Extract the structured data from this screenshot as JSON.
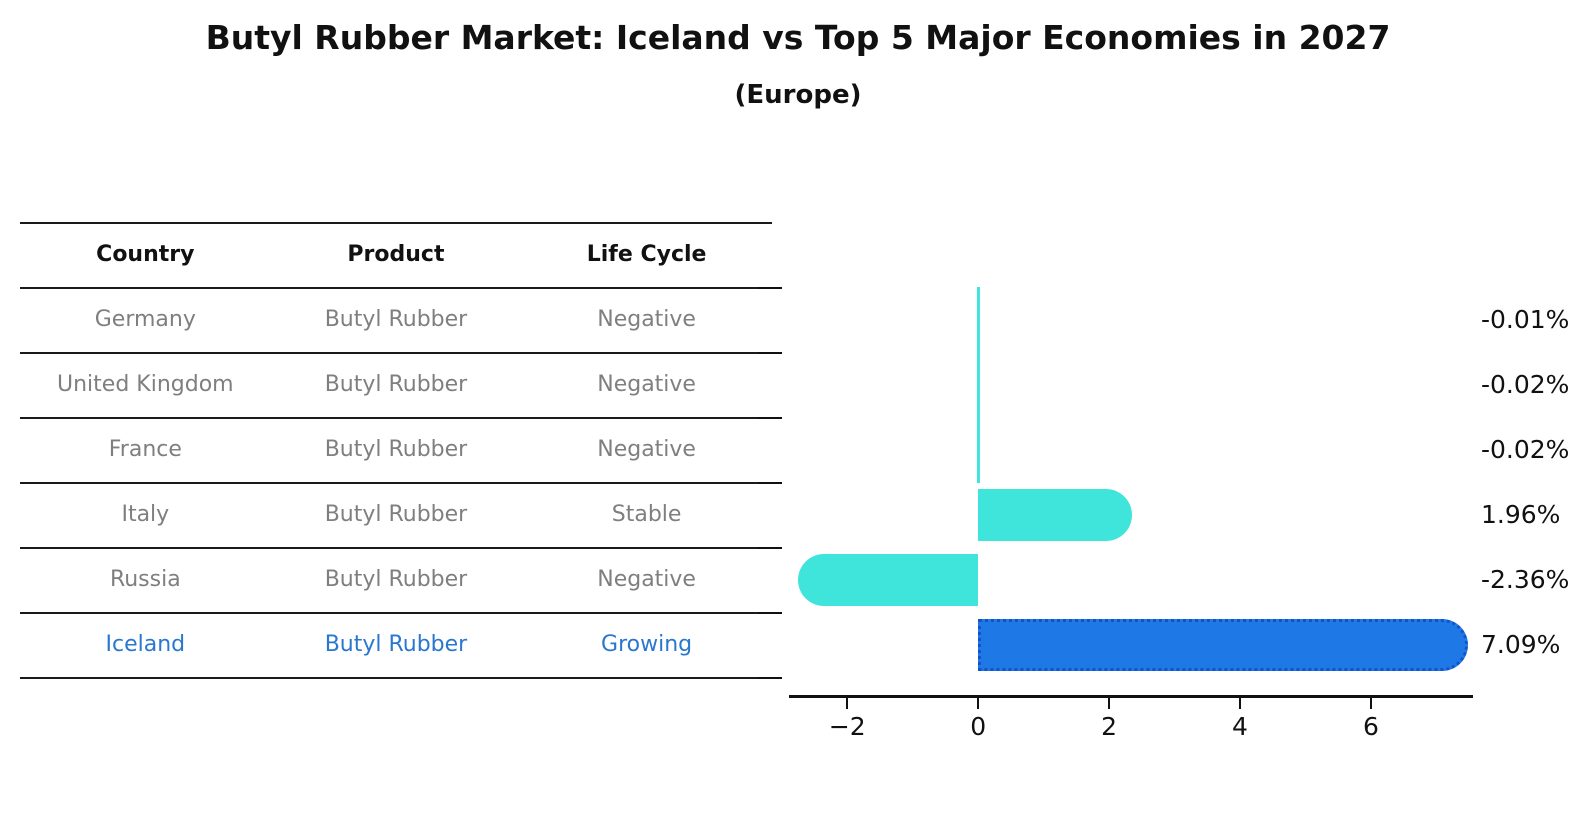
{
  "title": "Butyl Rubber Market: Iceland vs Top 5 Major Economies in 2027",
  "subtitle": "(Europe)",
  "table": {
    "headers": [
      "Country",
      "Product",
      "Life Cycle"
    ],
    "rows": [
      {
        "country": "Germany",
        "product": "Butyl Rubber",
        "life_cycle": "Negative",
        "highlight": false
      },
      {
        "country": "United Kingdom",
        "product": "Butyl Rubber",
        "life_cycle": "Negative",
        "highlight": false
      },
      {
        "country": "France",
        "product": "Butyl Rubber",
        "life_cycle": "Negative",
        "highlight": false
      },
      {
        "country": "Italy",
        "product": "Butyl Rubber",
        "life_cycle": "Stable",
        "highlight": false
      },
      {
        "country": "Russia",
        "product": "Butyl Rubber",
        "life_cycle": "Negative",
        "highlight": false
      },
      {
        "country": "Iceland",
        "product": "Butyl Rubber",
        "life_cycle": "Growing",
        "highlight": true
      }
    ]
  },
  "chart_data": {
    "type": "bar",
    "orientation": "horizontal",
    "title": "Butyl Rubber Market: Iceland vs Top 5 Major Economies in 2027",
    "subtitle": "(Europe)",
    "categories": [
      "Germany",
      "United Kingdom",
      "France",
      "Italy",
      "Russia",
      "Iceland"
    ],
    "values": [
      -0.01,
      -0.02,
      -0.02,
      1.96,
      -2.36,
      7.09
    ],
    "value_labels": [
      "-0.01%",
      "-0.02%",
      "-0.02%",
      "1.96%",
      "-2.36%",
      "7.09%"
    ],
    "unit": "%",
    "x_ticks": [
      -2,
      0,
      2,
      4,
      6
    ],
    "x_tick_labels": [
      "−2",
      "0",
      "2",
      "4",
      "6"
    ],
    "xlim": [
      -2.89,
      7.56
    ],
    "grid": false,
    "legend": "none",
    "highlight_index": 5,
    "colors": {
      "default_bar": "#3FE4DA",
      "highlight_bar": "#1E79E6",
      "highlight_border": "#1452C8",
      "axis": "#111111",
      "table_text": "#7f7f7f",
      "highlight_text": "#2A77D0",
      "value_text": "#111111"
    }
  }
}
